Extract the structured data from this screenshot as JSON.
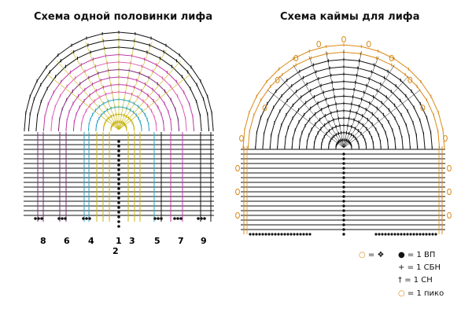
{
  "titles": {
    "left": "Схема одной половинки лифа",
    "right": "Схема каймы для лифа"
  },
  "colors": {
    "purple": "#7a2a78",
    "magenta": "#c03aa8",
    "pink": "#e05fb5",
    "cyan": "#2aa5c4",
    "yellow": "#c8b410",
    "orange": "#d88a18",
    "black": "#111111"
  },
  "row_numbers": [
    {
      "label": "8",
      "color": "#7a2a78"
    },
    {
      "label": "6",
      "color": "#7a2a78"
    },
    {
      "label": "4",
      "color": "#2aa5c4"
    },
    {
      "label": "1",
      "color": "#111111"
    },
    {
      "label": "2",
      "color": "#c8b410"
    },
    {
      "label": "3",
      "color": "#c8b410"
    },
    {
      "label": "5",
      "color": "#111111"
    },
    {
      "label": "7",
      "color": "#c03aa8"
    },
    {
      "label": "9",
      "color": "#111111"
    }
  ],
  "legend": {
    "picot_eq": "= ❖",
    "ch": "= 1 ВП",
    "sc": "= 1 СБН",
    "dc": "= 1 СН",
    "picot": "= 1 пико"
  }
}
